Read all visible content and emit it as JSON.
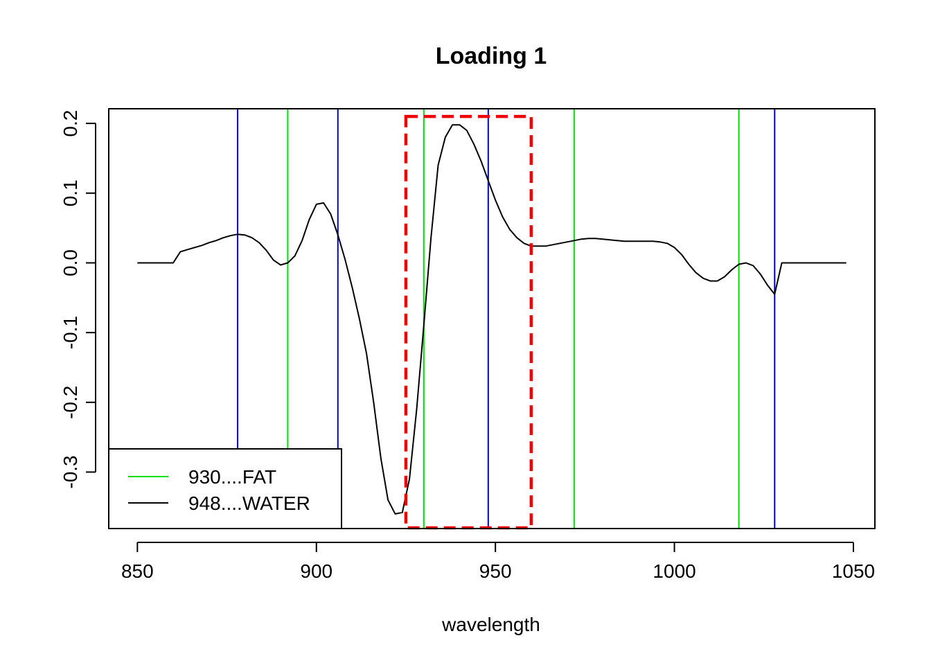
{
  "chart_data": {
    "type": "line",
    "title": "Loading 1",
    "xlabel": "wavelength",
    "ylabel": "",
    "xlim": [
      842,
      1056
    ],
    "ylim": [
      -0.381,
      0.221
    ],
    "x_ticks": [
      850,
      900,
      950,
      1000,
      1050
    ],
    "y_ticks": [
      -0.3,
      -0.2,
      -0.1,
      0.0,
      0.1,
      0.2
    ],
    "x_tick_labels": [
      "850",
      "900",
      "950",
      "1000",
      "1050"
    ],
    "y_tick_labels": [
      "-0.3",
      "-0.2",
      "-0.1",
      "0.0",
      "0.1",
      "0.2"
    ],
    "series": [
      {
        "color": "#000000",
        "x": [
          850,
          852,
          854,
          856,
          858,
          860,
          862,
          864,
          866,
          868,
          870,
          872,
          874,
          876,
          878,
          880,
          882,
          884,
          886,
          888,
          890,
          892,
          894,
          896,
          898,
          900,
          902,
          904,
          906,
          908,
          910,
          912,
          914,
          916,
          918,
          920,
          922,
          924,
          926,
          928,
          930,
          932,
          934,
          936,
          938,
          940,
          942,
          944,
          946,
          948,
          950,
          952,
          954,
          956,
          958,
          960,
          962,
          964,
          966,
          968,
          970,
          972,
          974,
          976,
          978,
          980,
          982,
          984,
          986,
          988,
          990,
          992,
          994,
          996,
          998,
          1000,
          1002,
          1004,
          1006,
          1008,
          1010,
          1012,
          1014,
          1016,
          1018,
          1020,
          1022,
          1024,
          1026,
          1028,
          1030,
          1032,
          1034,
          1036,
          1038,
          1040,
          1042,
          1044,
          1046,
          1048
        ],
        "y": [
          0.0,
          0.0,
          0.0,
          0.0,
          0.0,
          0.0,
          0.016,
          0.019,
          0.022,
          0.025,
          0.029,
          0.032,
          0.036,
          0.039,
          0.041,
          0.04,
          0.036,
          0.029,
          0.018,
          0.004,
          -0.003,
          0.0,
          0.01,
          0.032,
          0.062,
          0.084,
          0.086,
          0.07,
          0.04,
          0.005,
          -0.035,
          -0.08,
          -0.13,
          -0.2,
          -0.28,
          -0.34,
          -0.36,
          -0.358,
          -0.31,
          -0.21,
          -0.09,
          0.035,
          0.14,
          0.18,
          0.198,
          0.198,
          0.19,
          0.17,
          0.146,
          0.118,
          0.09,
          0.066,
          0.048,
          0.036,
          0.028,
          0.024,
          0.024,
          0.024,
          0.026,
          0.028,
          0.03,
          0.032,
          0.034,
          0.035,
          0.035,
          0.034,
          0.033,
          0.032,
          0.031,
          0.031,
          0.031,
          0.031,
          0.031,
          0.03,
          0.028,
          0.022,
          0.012,
          -0.002,
          -0.014,
          -0.022,
          -0.026,
          -0.026,
          -0.02,
          -0.01,
          -0.002,
          0.0,
          -0.004,
          -0.016,
          -0.032,
          -0.045,
          0.0,
          0.0,
          0.0,
          0.0,
          0.0,
          0.0,
          0.0,
          0.0,
          0.0,
          0.0
        ]
      }
    ],
    "vlines": [
      {
        "x": 878,
        "color": "#0000CC"
      },
      {
        "x": 892,
        "color": "#00E000"
      },
      {
        "x": 906,
        "color": "#0000CC"
      },
      {
        "x": 930,
        "color": "#00E000"
      },
      {
        "x": 948,
        "color": "#0000CC"
      },
      {
        "x": 972,
        "color": "#00E000"
      },
      {
        "x": 1018,
        "color": "#00E000"
      },
      {
        "x": 1028,
        "color": "#0000CC"
      }
    ],
    "highlight_rect": {
      "x0": 925,
      "x1": 960,
      "y0": -0.38,
      "y1": 0.21,
      "color": "#EE0000"
    },
    "legend": {
      "position": "bottom-left",
      "entries": [
        {
          "label": "930....FAT",
          "color": "#00E000"
        },
        {
          "label": "948....WATER",
          "color": "#000000"
        }
      ]
    }
  }
}
